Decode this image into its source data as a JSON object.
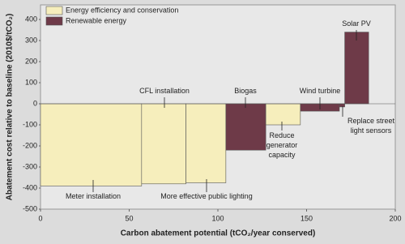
{
  "chart_data": {
    "type": "mac-curve",
    "x_label": "Carbon abatement potential (tCO₂/year conserved)",
    "y_label": "Abatement cost relative to baseline (2010$/tCO₂)",
    "categories": [
      "Meter installation",
      "CFL installation",
      "More effective public lighting",
      "Biogas",
      "Reduce generator capacity",
      "Wind turbine",
      "Replace street light sensors",
      "Solar PV"
    ],
    "widths": [
      57,
      25,
      22.5,
      22.5,
      19.5,
      22,
      3,
      13.5
    ],
    "values": [
      -390,
      -380,
      -375,
      -220,
      -100,
      -35,
      -15,
      340
    ],
    "groups": [
      0,
      0,
      0,
      1,
      0,
      1,
      1,
      1
    ],
    "series": [
      {
        "name": "Energy efficiency and conservation",
        "color": "#f6eebc"
      },
      {
        "name": "Renewable energy",
        "color": "#6e3a48"
      }
    ],
    "xlim": [
      0,
      200
    ],
    "xticks": [
      0,
      50,
      100,
      150,
      200
    ],
    "ylim": [
      -500,
      400
    ],
    "yticks": [
      -500,
      -400,
      -300,
      -200,
      -100,
      0,
      100,
      200,
      300,
      400
    ],
    "grid": false
  }
}
